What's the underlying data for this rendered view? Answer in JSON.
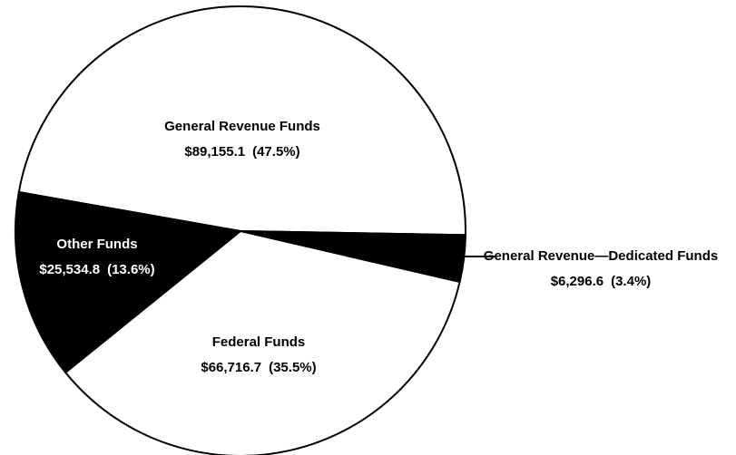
{
  "chart_data": {
    "type": "pie",
    "categories": [
      "General Revenue Funds",
      "General Revenue—Dedicated Funds",
      "Federal Funds",
      "Other Funds"
    ],
    "values": [
      89155.1,
      6296.6,
      66716.7,
      25534.8
    ],
    "value_labels": [
      "$89,155.1",
      "$6,296.6",
      "$66,716.7",
      "$25,534.8"
    ],
    "shares": [
      47.5,
      3.4,
      35.5,
      13.6
    ],
    "share_labels": [
      "(47.5%)",
      "(3.4%)",
      "(35.5%)",
      "(13.6%)"
    ],
    "colors": [
      "#ffffff",
      "#000000",
      "#ffffff",
      "#000000"
    ]
  }
}
